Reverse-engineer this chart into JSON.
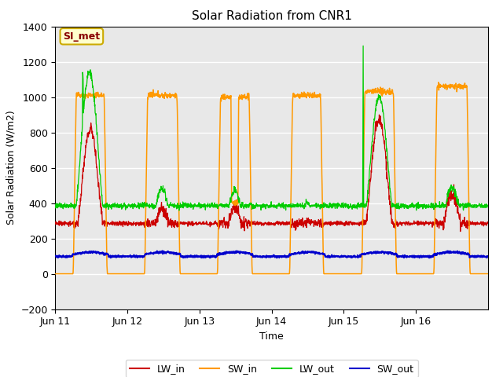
{
  "title": "Solar Radiation from CNR1",
  "xlabel": "Time",
  "ylabel": "Solar Radiation (W/m2)",
  "ylim": [
    -200,
    1400
  ],
  "yticks": [
    -200,
    0,
    200,
    400,
    600,
    800,
    1000,
    1200,
    1400
  ],
  "annotation": "SI_met",
  "bg_color": "#e8e8e8",
  "line_colors": {
    "LW_in": "#cc0000",
    "SW_in": "#ff9900",
    "LW_out": "#00cc00",
    "SW_out": "#0000cc"
  },
  "legend_labels": [
    "LW_in",
    "SW_in",
    "LW_out",
    "SW_out"
  ],
  "day_labels": [
    "Jun 11",
    "Jun 12",
    "Jun 13",
    "Jun 14",
    "Jun 15",
    "Jun 16"
  ],
  "n_days": 6,
  "n_points_per_day": 288
}
